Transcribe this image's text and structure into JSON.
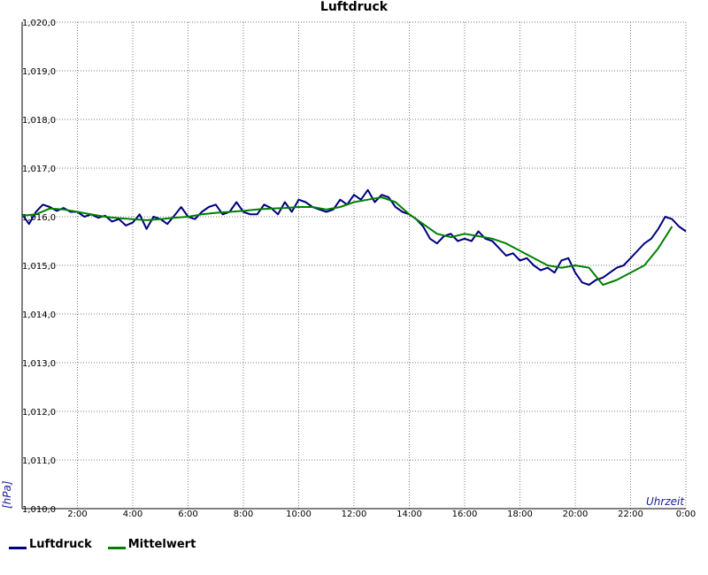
{
  "chart_data": {
    "type": "line",
    "title": "Luftdruck",
    "xlabel": "Uhrzeit",
    "ylabel": "[hPa]",
    "xlim": [
      0,
      24
    ],
    "ylim": [
      1010.0,
      1020.0
    ],
    "x_ticks": [
      "2:00",
      "4:00",
      "6:00",
      "8:00",
      "10:00",
      "12:00",
      "14:00",
      "16:00",
      "18:00",
      "20:00",
      "22:00",
      "0:00"
    ],
    "y_ticks": [
      "1,010,0",
      "1,011,0",
      "1,012,0",
      "1,013,0",
      "1,014,0",
      "1,015,0",
      "1,016,0",
      "1,017,0",
      "1,018,0",
      "1,019,0",
      "1,020,0"
    ],
    "grid": true,
    "legend_position": "bottom-left",
    "series": [
      {
        "name": "Luftdruck",
        "color": "#000080",
        "x": [
          0.0,
          0.25,
          0.5,
          0.75,
          1.0,
          1.25,
          1.5,
          1.75,
          2.0,
          2.25,
          2.5,
          2.75,
          3.0,
          3.25,
          3.5,
          3.75,
          4.0,
          4.25,
          4.5,
          4.75,
          5.0,
          5.25,
          5.5,
          5.75,
          6.0,
          6.25,
          6.5,
          6.75,
          7.0,
          7.25,
          7.5,
          7.75,
          8.0,
          8.25,
          8.5,
          8.75,
          9.0,
          9.25,
          9.5,
          9.75,
          10.0,
          10.25,
          10.5,
          10.75,
          11.0,
          11.25,
          11.5,
          11.75,
          12.0,
          12.25,
          12.5,
          12.75,
          13.0,
          13.25,
          13.5,
          13.75,
          14.0,
          14.25,
          14.5,
          14.75,
          15.0,
          15.25,
          15.5,
          15.75,
          16.0,
          16.25,
          16.5,
          16.75,
          17.0,
          17.25,
          17.5,
          17.75,
          18.0,
          18.25,
          18.5,
          18.75,
          19.0,
          19.25,
          19.5,
          19.75,
          20.0,
          20.25,
          20.5,
          20.75,
          21.0,
          21.25,
          21.5,
          21.75,
          22.0,
          22.25,
          22.5,
          22.75,
          23.0,
          23.25,
          23.5,
          23.75,
          24.0
        ],
        "values": [
          1016.05,
          1015.85,
          1016.1,
          1016.25,
          1016.2,
          1016.12,
          1016.18,
          1016.1,
          1016.1,
          1016.0,
          1016.05,
          1015.98,
          1016.02,
          1015.9,
          1015.95,
          1015.82,
          1015.88,
          1016.05,
          1015.75,
          1016.0,
          1015.95,
          1015.85,
          1016.02,
          1016.2,
          1016.0,
          1015.95,
          1016.1,
          1016.2,
          1016.25,
          1016.05,
          1016.1,
          1016.3,
          1016.1,
          1016.05,
          1016.05,
          1016.25,
          1016.18,
          1016.05,
          1016.3,
          1016.1,
          1016.35,
          1016.3,
          1016.2,
          1016.15,
          1016.1,
          1016.15,
          1016.35,
          1016.25,
          1016.45,
          1016.35,
          1016.55,
          1016.3,
          1016.45,
          1016.4,
          1016.2,
          1016.1,
          1016.05,
          1015.95,
          1015.8,
          1015.55,
          1015.45,
          1015.6,
          1015.65,
          1015.5,
          1015.55,
          1015.5,
          1015.7,
          1015.55,
          1015.5,
          1015.35,
          1015.2,
          1015.25,
          1015.1,
          1015.15,
          1015.0,
          1014.9,
          1014.95,
          1014.85,
          1015.1,
          1015.15,
          1014.85,
          1014.65,
          1014.6,
          1014.7,
          1014.75,
          1014.85,
          1014.95,
          1015.0,
          1015.15,
          1015.3,
          1015.45,
          1015.55,
          1015.75,
          1016.0,
          1015.95,
          1015.8,
          1015.7
        ]
      },
      {
        "name": "Mittelwert",
        "color": "#008000",
        "x": [
          0.0,
          0.5,
          1.0,
          1.5,
          2.0,
          2.5,
          3.0,
          3.5,
          4.0,
          4.5,
          5.0,
          5.5,
          6.0,
          6.5,
          7.0,
          7.5,
          8.0,
          8.5,
          9.0,
          9.5,
          10.0,
          10.5,
          11.0,
          11.5,
          12.0,
          12.5,
          13.0,
          13.5,
          14.0,
          14.5,
          15.0,
          15.5,
          16.0,
          16.5,
          17.0,
          17.5,
          18.0,
          18.5,
          19.0,
          19.5,
          20.0,
          20.5,
          21.0,
          21.5,
          22.0,
          22.5,
          23.0,
          23.5
        ],
        "values": [
          1016.02,
          1016.05,
          1016.17,
          1016.15,
          1016.1,
          1016.05,
          1016.0,
          1015.97,
          1015.95,
          1015.93,
          1015.95,
          1015.98,
          1016.0,
          1016.05,
          1016.08,
          1016.1,
          1016.12,
          1016.15,
          1016.17,
          1016.18,
          1016.2,
          1016.2,
          1016.15,
          1016.2,
          1016.3,
          1016.35,
          1016.4,
          1016.3,
          1016.05,
          1015.85,
          1015.65,
          1015.58,
          1015.65,
          1015.6,
          1015.55,
          1015.45,
          1015.3,
          1015.15,
          1015.0,
          1014.95,
          1015.0,
          1014.95,
          1014.6,
          1014.7,
          1014.85,
          1015.0,
          1015.35,
          1015.8
        ]
      }
    ]
  }
}
